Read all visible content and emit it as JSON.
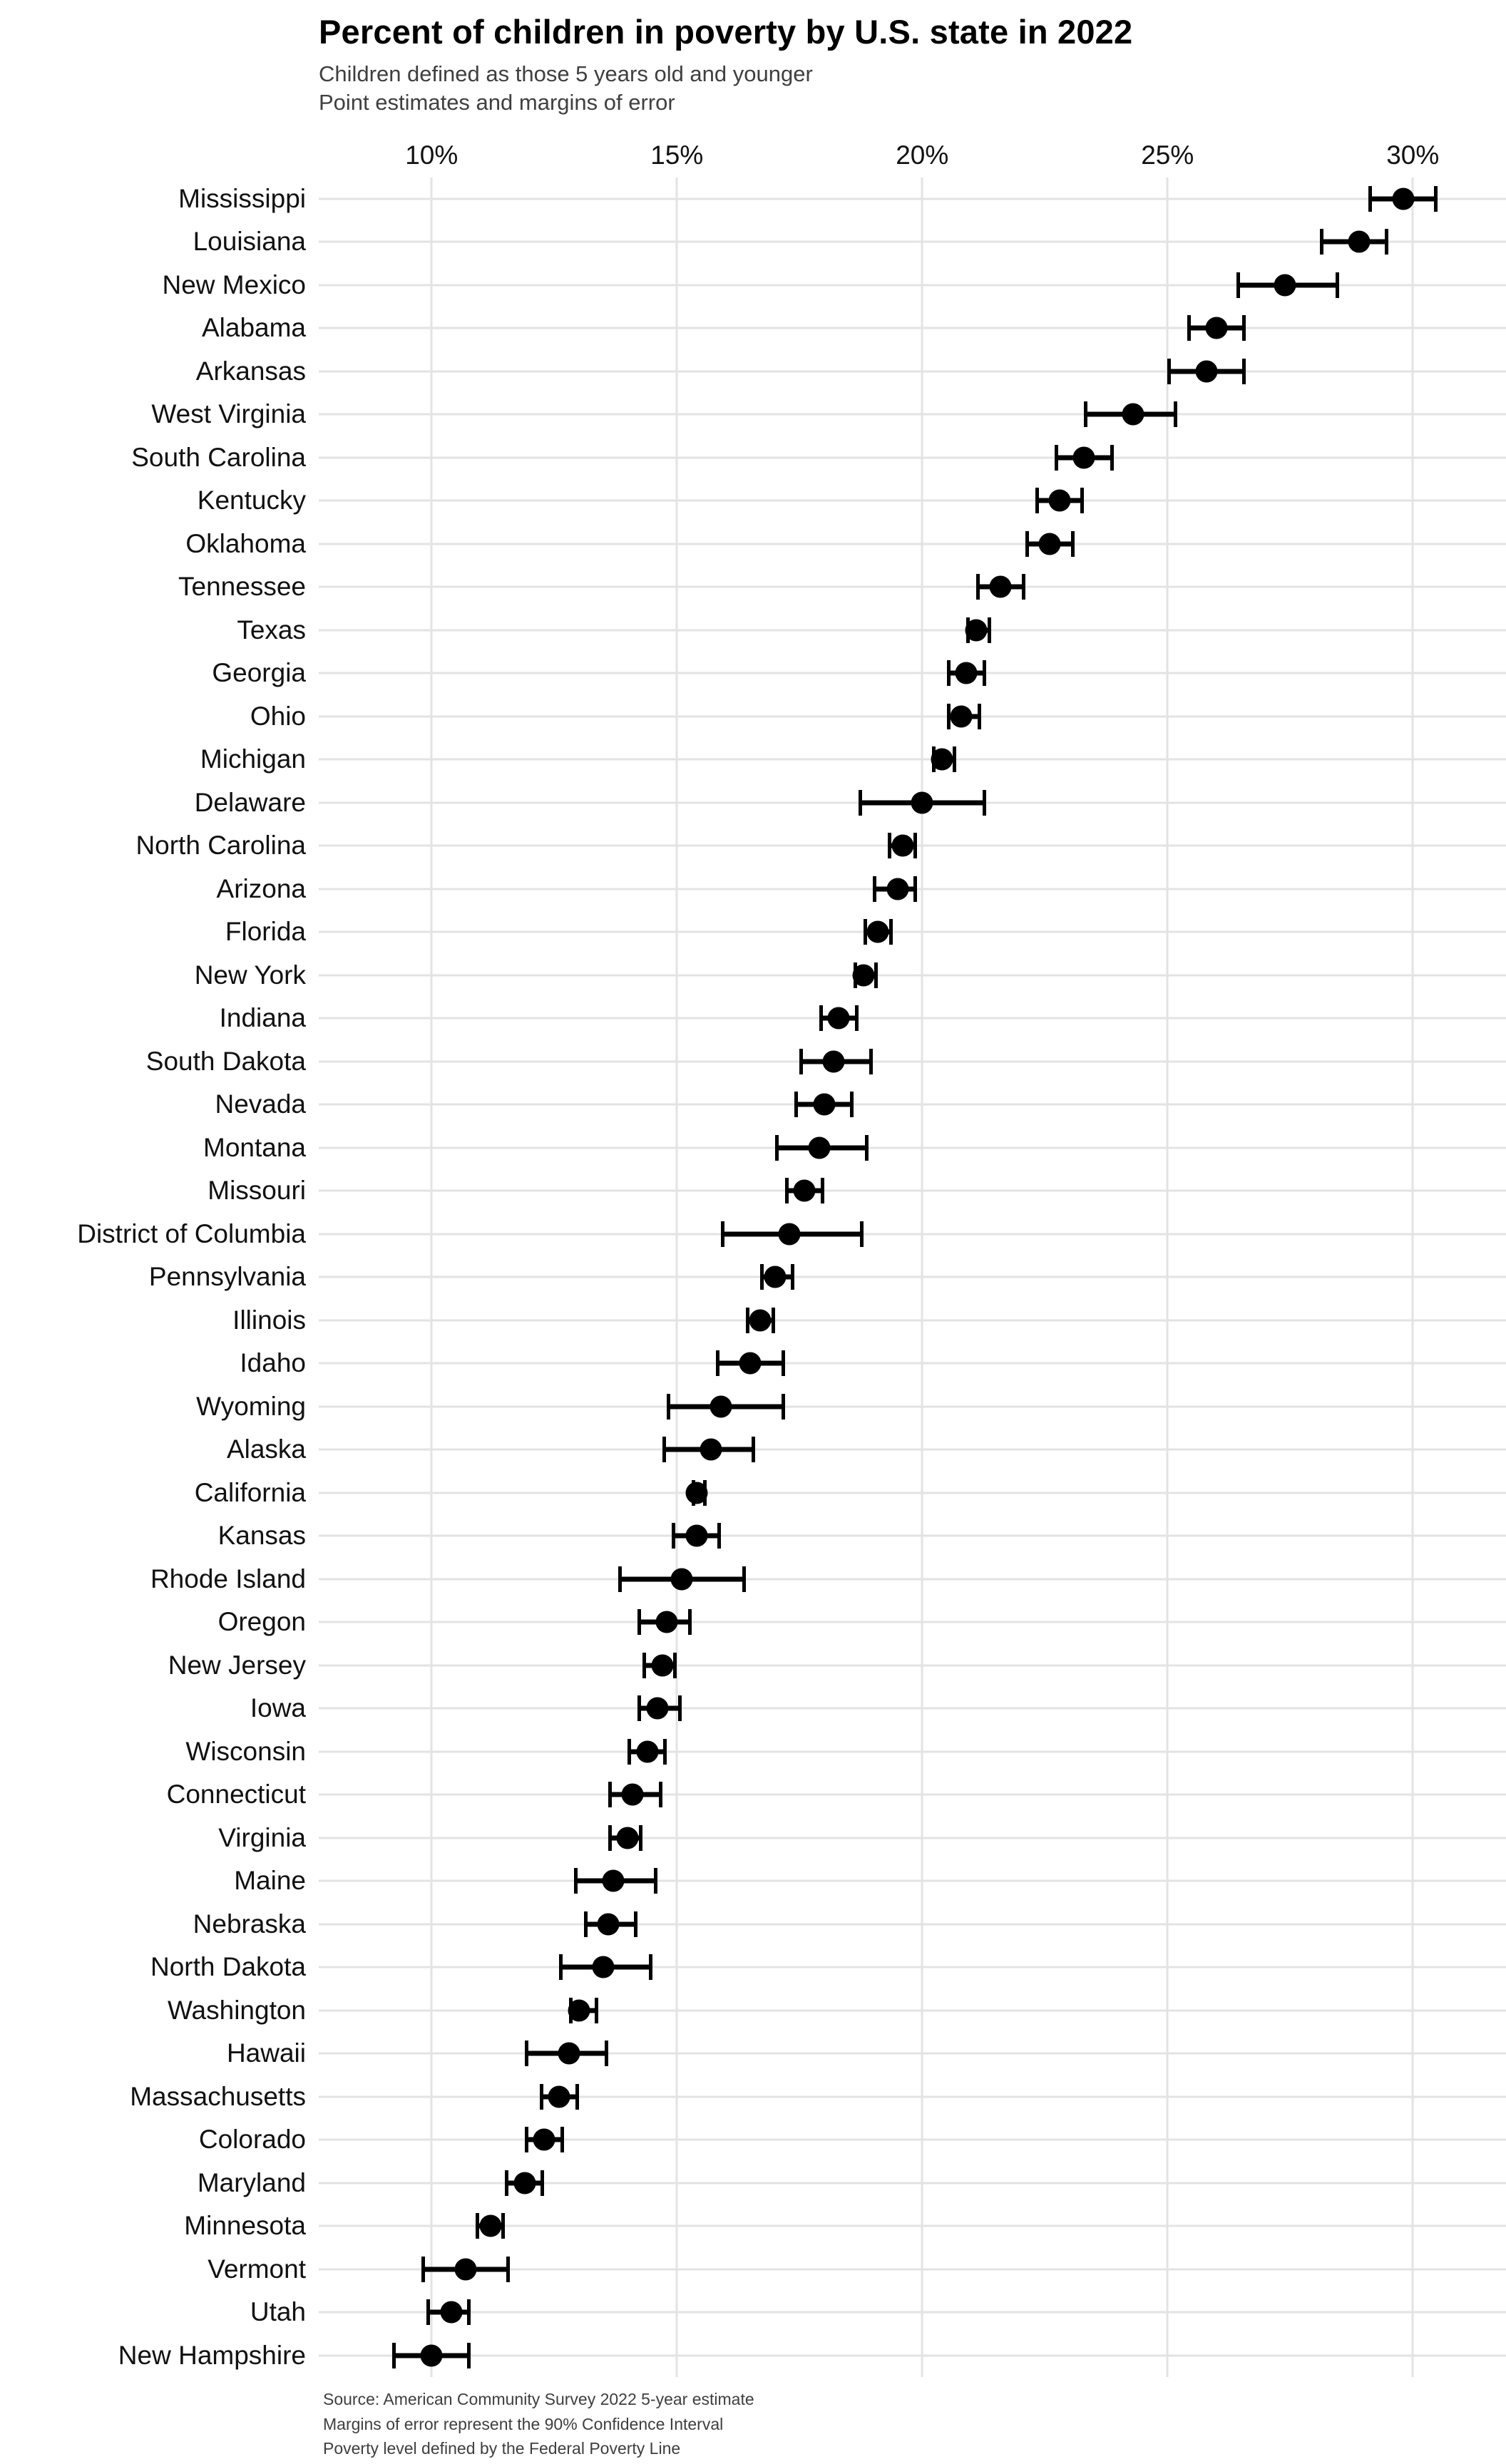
{
  "header": {
    "title": "Percent of children in poverty by U.S. state in 2022",
    "subtitle_line1": "Children defined as those 5 years old and younger",
    "subtitle_line2": "Point estimates and margins of error"
  },
  "footer": {
    "lines": [
      "Source: American Community Survey 2022 5-year estimate",
      "Margins of error represent the 90% Confidence Interval",
      "Poverty level defined by the Federal Poverty Line"
    ]
  },
  "colors": {
    "point": "#000000",
    "gridline": "#e3e3e3",
    "title": "#000000",
    "subtitle": "#3f3f3f",
    "axis_text": "#111111",
    "background": "#ffffff"
  },
  "chart_data": {
    "type": "scatter",
    "subtype": "dot-and-whisker",
    "orientation": "horizontal",
    "title": "Percent of children in poverty by U.S. state in 2022",
    "xlabel": "",
    "ylabel": "",
    "legend": "none",
    "grid": "major-only",
    "x_axis": {
      "position": "top",
      "range": [
        7.7,
        31.9
      ],
      "ticks": [
        10,
        15,
        20,
        25,
        30
      ],
      "tick_labels": [
        "10%",
        "15%",
        "20%",
        "25%",
        "30%"
      ]
    },
    "series": [
      {
        "name": "Point estimate with 90% confidence interval",
        "points": [
          {
            "state": "Mississippi",
            "estimate": 29.8,
            "ci_low": 29.1,
            "ci_high": 30.5
          },
          {
            "state": "Louisiana",
            "estimate": 28.9,
            "ci_low": 28.1,
            "ci_high": 29.5
          },
          {
            "state": "New Mexico",
            "estimate": 27.4,
            "ci_low": 26.4,
            "ci_high": 28.5
          },
          {
            "state": "Alabama",
            "estimate": 26.0,
            "ci_low": 25.4,
            "ci_high": 26.6
          },
          {
            "state": "Arkansas",
            "estimate": 25.8,
            "ci_low": 25.0,
            "ci_high": 26.6
          },
          {
            "state": "West Virginia",
            "estimate": 24.3,
            "ci_low": 23.3,
            "ci_high": 25.2
          },
          {
            "state": "South Carolina",
            "estimate": 23.3,
            "ci_low": 22.7,
            "ci_high": 23.9
          },
          {
            "state": "Kentucky",
            "estimate": 22.8,
            "ci_low": 22.3,
            "ci_high": 23.3
          },
          {
            "state": "Oklahoma",
            "estimate": 22.6,
            "ci_low": 22.1,
            "ci_high": 23.1
          },
          {
            "state": "Tennessee",
            "estimate": 21.6,
            "ci_low": 21.1,
            "ci_high": 22.1
          },
          {
            "state": "Texas",
            "estimate": 21.1,
            "ci_low": 20.9,
            "ci_high": 21.4
          },
          {
            "state": "Georgia",
            "estimate": 20.9,
            "ci_low": 20.5,
            "ci_high": 21.3
          },
          {
            "state": "Ohio",
            "estimate": 20.8,
            "ci_low": 20.5,
            "ci_high": 21.2
          },
          {
            "state": "Michigan",
            "estimate": 20.4,
            "ci_low": 20.2,
            "ci_high": 20.7
          },
          {
            "state": "Delaware",
            "estimate": 20.0,
            "ci_low": 18.7,
            "ci_high": 21.3
          },
          {
            "state": "North Carolina",
            "estimate": 19.6,
            "ci_low": 19.3,
            "ci_high": 19.9
          },
          {
            "state": "Arizona",
            "estimate": 19.5,
            "ci_low": 19.0,
            "ci_high": 19.9
          },
          {
            "state": "Florida",
            "estimate": 19.1,
            "ci_low": 18.8,
            "ci_high": 19.4
          },
          {
            "state": "New York",
            "estimate": 18.8,
            "ci_low": 18.6,
            "ci_high": 19.1
          },
          {
            "state": "Indiana",
            "estimate": 18.3,
            "ci_low": 17.9,
            "ci_high": 18.7
          },
          {
            "state": "South Dakota",
            "estimate": 18.2,
            "ci_low": 17.5,
            "ci_high": 19.0
          },
          {
            "state": "Nevada",
            "estimate": 18.0,
            "ci_low": 17.4,
            "ci_high": 18.6
          },
          {
            "state": "Montana",
            "estimate": 17.9,
            "ci_low": 17.0,
            "ci_high": 18.9
          },
          {
            "state": "Missouri",
            "estimate": 17.6,
            "ci_low": 17.2,
            "ci_high": 18.0
          },
          {
            "state": "District of Columbia",
            "estimate": 17.3,
            "ci_low": 15.9,
            "ci_high": 18.8
          },
          {
            "state": "Pennsylvania",
            "estimate": 17.0,
            "ci_low": 16.7,
            "ci_high": 17.4
          },
          {
            "state": "Illinois",
            "estimate": 16.7,
            "ci_low": 16.4,
            "ci_high": 17.0
          },
          {
            "state": "Idaho",
            "estimate": 16.5,
            "ci_low": 15.8,
            "ci_high": 17.2
          },
          {
            "state": "Wyoming",
            "estimate": 15.9,
            "ci_low": 14.8,
            "ci_high": 17.2
          },
          {
            "state": "Alaska",
            "estimate": 15.7,
            "ci_low": 14.7,
            "ci_high": 16.6
          },
          {
            "state": "California",
            "estimate": 15.4,
            "ci_low": 15.3,
            "ci_high": 15.6
          },
          {
            "state": "Kansas",
            "estimate": 15.4,
            "ci_low": 14.9,
            "ci_high": 15.9
          },
          {
            "state": "Rhode Island",
            "estimate": 15.1,
            "ci_low": 13.8,
            "ci_high": 16.4
          },
          {
            "state": "Oregon",
            "estimate": 14.8,
            "ci_low": 14.2,
            "ci_high": 15.3
          },
          {
            "state": "New Jersey",
            "estimate": 14.7,
            "ci_low": 14.3,
            "ci_high": 15.0
          },
          {
            "state": "Iowa",
            "estimate": 14.6,
            "ci_low": 14.2,
            "ci_high": 15.1
          },
          {
            "state": "Wisconsin",
            "estimate": 14.4,
            "ci_low": 14.0,
            "ci_high": 14.8
          },
          {
            "state": "Connecticut",
            "estimate": 14.1,
            "ci_low": 13.6,
            "ci_high": 14.7
          },
          {
            "state": "Virginia",
            "estimate": 14.0,
            "ci_low": 13.6,
            "ci_high": 14.3
          },
          {
            "state": "Maine",
            "estimate": 13.7,
            "ci_low": 12.9,
            "ci_high": 14.6
          },
          {
            "state": "Nebraska",
            "estimate": 13.6,
            "ci_low": 13.1,
            "ci_high": 14.2
          },
          {
            "state": "North Dakota",
            "estimate": 13.5,
            "ci_low": 12.6,
            "ci_high": 14.5
          },
          {
            "state": "Washington",
            "estimate": 13.0,
            "ci_low": 12.8,
            "ci_high": 13.4
          },
          {
            "state": "Hawaii",
            "estimate": 12.8,
            "ci_low": 11.9,
            "ci_high": 13.6
          },
          {
            "state": "Massachusetts",
            "estimate": 12.6,
            "ci_low": 12.2,
            "ci_high": 13.0
          },
          {
            "state": "Colorado",
            "estimate": 12.3,
            "ci_low": 11.9,
            "ci_high": 12.7
          },
          {
            "state": "Maryland",
            "estimate": 11.9,
            "ci_low": 11.5,
            "ci_high": 12.3
          },
          {
            "state": "Minnesota",
            "estimate": 11.2,
            "ci_low": 10.9,
            "ci_high": 11.5
          },
          {
            "state": "Vermont",
            "estimate": 10.7,
            "ci_low": 9.8,
            "ci_high": 11.6
          },
          {
            "state": "Utah",
            "estimate": 10.4,
            "ci_low": 9.9,
            "ci_high": 10.8
          },
          {
            "state": "New Hampshire",
            "estimate": 10.0,
            "ci_low": 9.2,
            "ci_high": 10.8
          }
        ]
      }
    ]
  }
}
